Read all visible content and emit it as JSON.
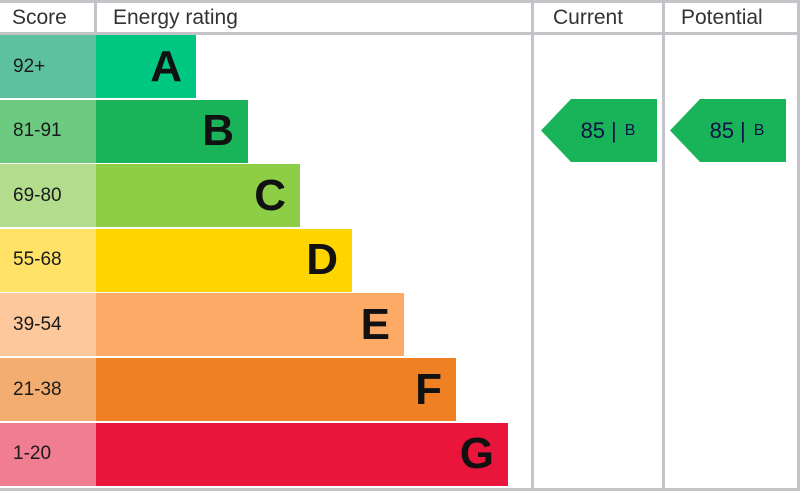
{
  "header": {
    "score": "Score",
    "rating": "Energy rating",
    "current": "Current",
    "potential": "Potential"
  },
  "chart_data": {
    "type": "table",
    "bands": [
      {
        "letter": "A",
        "range": "92+",
        "color": "#00c781",
        "light": "#5dc09f"
      },
      {
        "letter": "B",
        "range": "81-91",
        "color": "#19b459",
        "light": "#6ccb80"
      },
      {
        "letter": "C",
        "range": "69-80",
        "color": "#8dce46",
        "light": "#b3dd8c"
      },
      {
        "letter": "D",
        "range": "55-68",
        "color": "#ffd500",
        "light": "#ffe266"
      },
      {
        "letter": "E",
        "range": "39-54",
        "color": "#fcaa65",
        "light": "#fdc99c"
      },
      {
        "letter": "F",
        "range": "21-38",
        "color": "#ef8023",
        "light": "#f4ad70"
      },
      {
        "letter": "G",
        "range": "1-20",
        "color": "#e9153b",
        "light": "#f07d92"
      }
    ],
    "current": {
      "score": "85",
      "separator": "|",
      "letter": "B",
      "color": "#19b459"
    },
    "potential": {
      "score": "85",
      "separator": "|",
      "letter": "B",
      "color": "#19b459"
    }
  }
}
